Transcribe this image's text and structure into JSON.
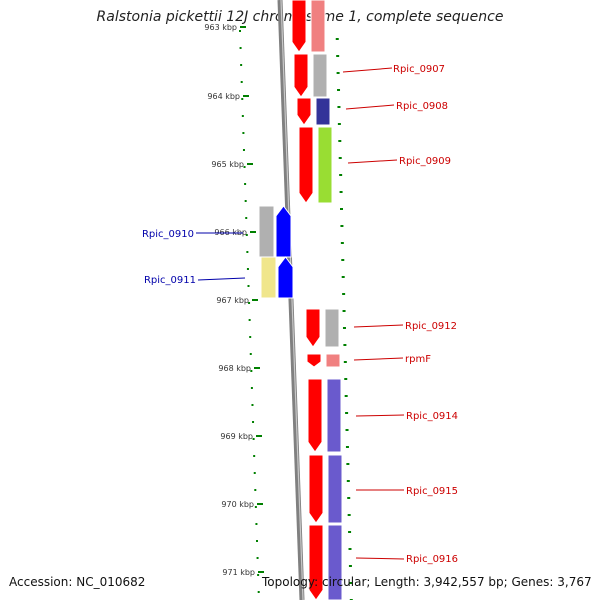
{
  "title": "Ralstonia pickettii 12J chromosome 1, complete sequence",
  "footer": {
    "accession": "Accession: NC_010682",
    "topology": "Topology: circular; Length: 3,942,557 bp; Genes: 3,767"
  },
  "colors": {
    "cds": "#ff0000",
    "cds_reverse": "#0000ff",
    "backbone": "#808080",
    "tick": "#008000",
    "label_forward": "#cc0000",
    "label_reverse": "#0000aa"
  },
  "ruler": {
    "ticks": [
      {
        "label": "963 kbp"
      },
      {
        "label": "964 kbp"
      },
      {
        "label": "965 kbp"
      },
      {
        "label": "966 kbp"
      },
      {
        "label": "967 kbp"
      },
      {
        "label": "968 kbp"
      },
      {
        "label": "969 kbp"
      },
      {
        "label": "970 kbp"
      },
      {
        "label": "971 kbp"
      }
    ]
  },
  "genes": [
    {
      "name": "",
      "strand": "+",
      "cog": "#f08080"
    },
    {
      "name": "Rpic_0907",
      "strand": "+",
      "cog": "#b0b0b0"
    },
    {
      "name": "Rpic_0908",
      "strand": "+",
      "cog": "#333399"
    },
    {
      "name": "Rpic_0909",
      "strand": "+",
      "cog": "#99dd33"
    },
    {
      "name": "Rpic_0910",
      "strand": "-",
      "cog": "#b0b0b0"
    },
    {
      "name": "Rpic_0911",
      "strand": "-",
      "cog": "#f0e68c"
    },
    {
      "name": "Rpic_0912",
      "strand": "+",
      "cog": "#b0b0b0"
    },
    {
      "name": "rpmF",
      "strand": "+",
      "cog": "#f08080"
    },
    {
      "name": "Rpic_0914",
      "strand": "+",
      "cog": "#6a5acd"
    },
    {
      "name": "Rpic_0915",
      "strand": "+",
      "cog": "#6a5acd"
    },
    {
      "name": "Rpic_0916",
      "strand": "+",
      "cog": "#6a5acd"
    }
  ]
}
